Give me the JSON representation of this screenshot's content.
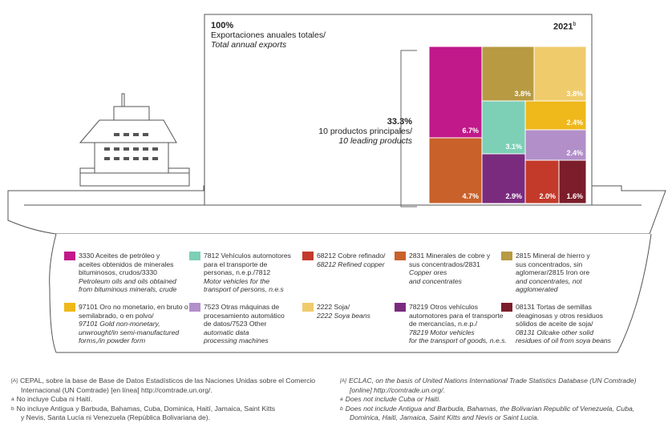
{
  "chart_data": {
    "type": "treemap",
    "year": "2021",
    "year_note": "b",
    "total": {
      "pct": "100%",
      "label_es": "Exportaciones anuales totales/",
      "label_en": "Total annual exports"
    },
    "leading": {
      "pct": "33.3%",
      "label_es": "10 productos principales/",
      "label_en": "10 leading products"
    },
    "cells": [
      {
        "code": "3330",
        "value": 6.7,
        "label": "6.7%",
        "color": "#c1198a"
      },
      {
        "code": "2831",
        "value": 4.7,
        "label": "4.7%",
        "color": "#c8612a"
      },
      {
        "code": "2815",
        "value": 3.8,
        "label": "3.8%",
        "color": "#b79a42"
      },
      {
        "code": "2222",
        "value": 3.8,
        "label": "3.8%",
        "color": "#efcb6c"
      },
      {
        "code": "7812",
        "value": 3.1,
        "label": "3.1%",
        "color": "#7dcfb6"
      },
      {
        "code": "97101",
        "value": 2.4,
        "label": "2.4%",
        "color": "#efb81b"
      },
      {
        "code": "7523",
        "value": 2.4,
        "label": "2.4%",
        "color": "#b28fc9"
      },
      {
        "code": "78219",
        "value": 2.9,
        "label": "2.9%",
        "color": "#7b2b7e"
      },
      {
        "code": "68212",
        "value": 2.0,
        "label": "2.0%",
        "color": "#c33a2b"
      },
      {
        "code": "08131",
        "value": 1.6,
        "label": "1.6%",
        "color": "#7b1d2b"
      }
    ]
  },
  "legend": [
    {
      "color": "#c1198a",
      "lines_es": [
        "3330 Aceites de petróleo y",
        "aceites obtenidos de minerales",
        "bituminosos, crudos/3330"
      ],
      "lines_en": [
        "Petroleum oils and oils obtained",
        "from bituminous minerals, crude"
      ]
    },
    {
      "color": "#7dcfb6",
      "lines_es": [
        "7812 Vehículos automotores",
        "para el transporte de",
        "personas, n.e.p./7812"
      ],
      "lines_en": [
        "Motor vehicles for the",
        "transport of persons, n.e.s"
      ]
    },
    {
      "color": "#c33a2b",
      "lines_es": [
        "68212 Cobre refinado/"
      ],
      "lines_en": [
        "68212 Refined copper"
      ]
    },
    {
      "color": "#c8612a",
      "lines_es": [
        "2831 Minerales de cobre y",
        "sus concentrados/2831"
      ],
      "lines_en": [
        "Copper ores",
        "and concentrates"
      ]
    },
    {
      "color": "#b79a42",
      "lines_es": [
        "2815 Mineral de hierro y",
        "sus concentrados, sin",
        "aglomerar/2815 Iron ore"
      ],
      "lines_en": [
        "and concentrates, not",
        "agglomerated"
      ]
    },
    {
      "color": "#efb81b",
      "lines_es": [
        "97101 Oro no monetario, en bruto o",
        "semilabrado, o en polvo/"
      ],
      "lines_en": [
        "97101 Gold non-monetary,",
        "unwrought/in semi-manufactured",
        "forms,/in powder form"
      ]
    },
    {
      "color": "#b28fc9",
      "lines_es": [
        "7523 Otras máquinas de",
        "procesamiento automático",
        "de datos/7523 Other"
      ],
      "lines_en": [
        "automatic data",
        "processing machines"
      ]
    },
    {
      "color": "#efcb6c",
      "lines_es": [
        "2222 Soja/"
      ],
      "lines_en": [
        "2222 Soya beans"
      ]
    },
    {
      "color": "#7b2b7e",
      "lines_es": [
        "78219 Otros vehículos",
        "automotores para el transporte",
        "de mercancías, n.e.p./"
      ],
      "lines_en": [
        "78219 Motor vehicles",
        "for the transport of goods, n.e.s."
      ]
    },
    {
      "color": "#7b1d2b",
      "lines_es": [
        "08131 Tortas de semillas",
        "oleaginosas y otros residuos",
        "sólidos de aceite de soja/"
      ],
      "lines_en": [
        "08131 Oilcake other solid",
        "residues of oil from soya beans"
      ]
    }
  ],
  "footnotes_es": [
    {
      "mark": "[A]",
      "lines": [
        "CEPAL, sobre la base de Base de Datos Estadísticos de las Naciones Unidas sobre el Comercio",
        "Internacional (UN Comtrade) [en línea] http://comtrade.un.org/."
      ]
    },
    {
      "mark": "a",
      "lines": [
        "No incluye Cuba ni Haití."
      ]
    },
    {
      "mark": "b",
      "lines": [
        "No incluye Antigua y Barbuda, Bahamas, Cuba, Dominica, Haití, Jamaica, Saint Kitts",
        "y Nevis, Santa Lucía ni Venezuela (República Bolivariana de)."
      ]
    }
  ],
  "footnotes_en": [
    {
      "mark": "[A]",
      "lines": [
        "ECLAC, on the basis of United Nations International Trade Statistics Database (UN Comtrade)",
        "[online] http://comtrade.un.org/."
      ]
    },
    {
      "mark": "a",
      "lines": [
        "Does not include Cuba or Haiti."
      ]
    },
    {
      "mark": "b",
      "lines": [
        "Does not include Antigua and Barbuda, Bahamas, the Bolivarian Republic of Venezuela, Cuba,",
        "Dominica, Haiti, Jamaica, Saint Kitts and Nevis or Saint Lucia."
      ]
    }
  ]
}
